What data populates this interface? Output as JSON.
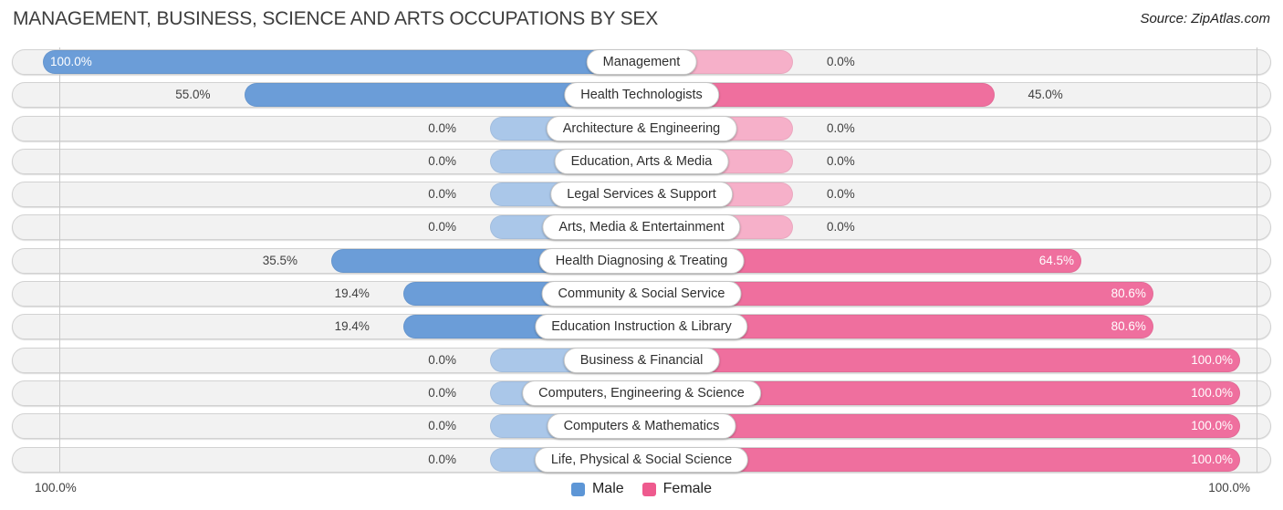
{
  "title": "MANAGEMENT, BUSINESS, SCIENCE AND ARTS OCCUPATIONS BY SEX",
  "source": "Source: ZipAtlas.com",
  "axis": {
    "left_label": "100.0%",
    "right_label": "100.0%"
  },
  "legend": {
    "male_label": "Male",
    "female_label": "Female"
  },
  "colors": {
    "male_color": "#6b9dd8",
    "male_stub_color": "#aac7e9",
    "female_color": "#ef6f9e",
    "female_stub_color": "#f6b0c9",
    "legend_male_color": "#5d96d6",
    "legend_female_color": "#ee5a8e"
  },
  "chart_data": {
    "type": "bar",
    "orientation": "bidirectional-horizontal",
    "title": "MANAGEMENT, BUSINESS, SCIENCE AND ARTS OCCUPATIONS BY SEX",
    "xlim_male": [
      100,
      0
    ],
    "xlim_female": [
      0,
      100
    ],
    "grid": false,
    "legend_position": "bottom-center",
    "categories": [
      "Management",
      "Health Technologists",
      "Architecture & Engineering",
      "Education, Arts & Media",
      "Legal Services & Support",
      "Arts, Media & Entertainment",
      "Health Diagnosing & Treating",
      "Community & Social Service",
      "Education Instruction & Library",
      "Business & Financial",
      "Computers, Engineering & Science",
      "Computers & Mathematics",
      "Life, Physical & Social Science"
    ],
    "series": [
      {
        "name": "Male",
        "values": [
          100.0,
          55.0,
          0.0,
          0.0,
          0.0,
          0.0,
          35.5,
          19.4,
          19.4,
          0.0,
          0.0,
          0.0,
          0.0
        ]
      },
      {
        "name": "Female",
        "values": [
          0.0,
          45.0,
          0.0,
          0.0,
          0.0,
          0.0,
          64.5,
          80.6,
          80.6,
          100.0,
          100.0,
          100.0,
          100.0
        ]
      }
    ],
    "value_labels": {
      "male": [
        "100.0%",
        "55.0%",
        "0.0%",
        "0.0%",
        "0.0%",
        "0.0%",
        "35.5%",
        "19.4%",
        "19.4%",
        "0.0%",
        "0.0%",
        "0.0%",
        "0.0%"
      ],
      "female": [
        "0.0%",
        "45.0%",
        "0.0%",
        "0.0%",
        "0.0%",
        "0.0%",
        "64.5%",
        "80.6%",
        "80.6%",
        "100.0%",
        "100.0%",
        "100.0%",
        "100.0%"
      ]
    }
  }
}
